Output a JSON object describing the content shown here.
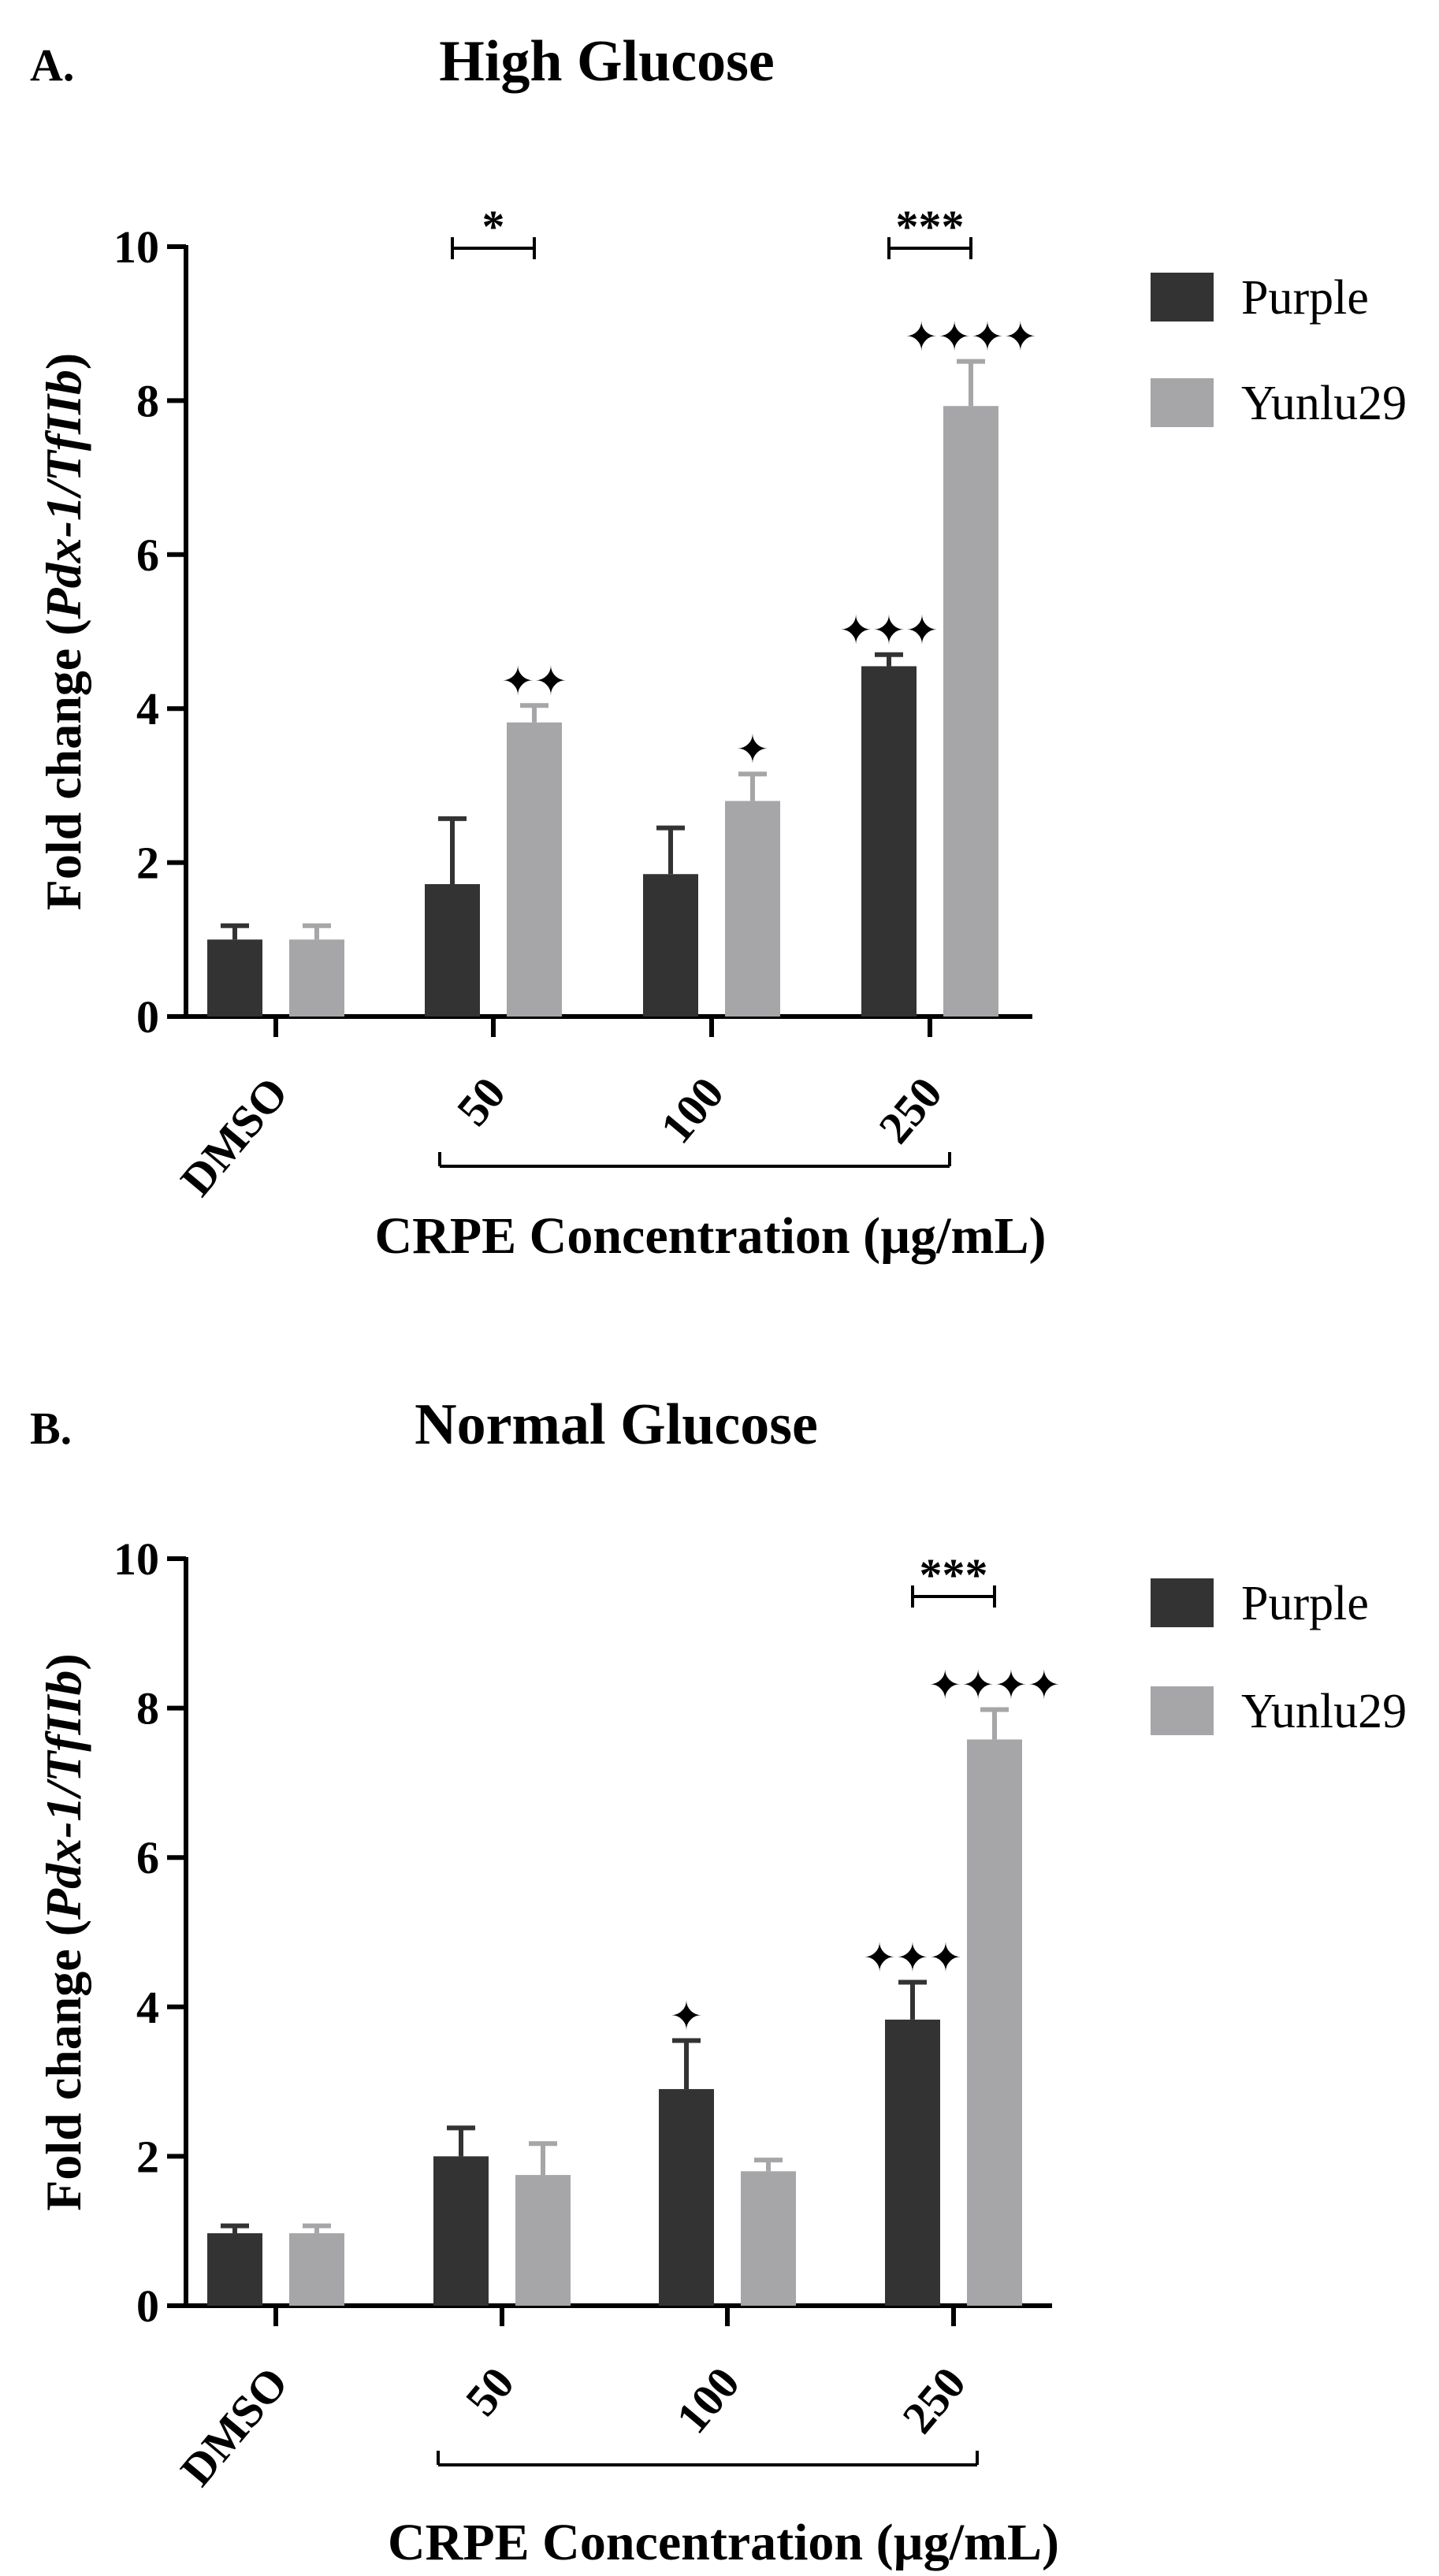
{
  "chart_data": [
    {
      "type": "bar",
      "panel_label": "A.",
      "title": "High Glucose",
      "xlabel": "CRPE Concentration (µg/mL)",
      "ylabel": "Fold change (Pdx-1/TfIIb)",
      "ylabel_parts": {
        "prefix": "Fold change (",
        "gene": "Pdx-1/TfIIb",
        "suffix": ")"
      },
      "ylim": [
        0,
        10
      ],
      "yticks": [
        0,
        2,
        4,
        6,
        8,
        10
      ],
      "categories": [
        "DMSO",
        "50",
        "100",
        "250"
      ],
      "legend_position": "top-right",
      "series": [
        {
          "name": "Purple",
          "color": "#333333",
          "values": [
            1.0,
            1.72,
            1.85,
            4.55
          ],
          "errors": [
            0.18,
            0.85,
            0.6,
            0.15
          ],
          "markers": [
            "",
            "",
            "",
            "✦✦✦"
          ]
        },
        {
          "name": "Yunlu29",
          "color": "#a6a6a8",
          "values": [
            1.0,
            3.82,
            2.8,
            7.93
          ],
          "errors": [
            0.18,
            0.22,
            0.35,
            0.58
          ],
          "markers": [
            "",
            "✦✦",
            "✦",
            "✦✦✦✦"
          ]
        }
      ],
      "comparisons": [
        {
          "category": "50",
          "label": "*"
        },
        {
          "category": "250",
          "label": "***"
        }
      ]
    },
    {
      "type": "bar",
      "panel_label": "B.",
      "title": "Normal Glucose",
      "xlabel": "CRPE Concentration (µg/mL)",
      "ylabel": "Fold change (Pdx-1/TfIIb)",
      "ylabel_parts": {
        "prefix": "Fold change (",
        "gene": "Pdx-1/TfIIb",
        "suffix": ")"
      },
      "ylim": [
        0,
        10
      ],
      "yticks": [
        0,
        2,
        4,
        6,
        8,
        10
      ],
      "categories": [
        "DMSO",
        "50",
        "100",
        "250"
      ],
      "legend_position": "top-right",
      "series": [
        {
          "name": "Purple",
          "color": "#333333",
          "values": [
            0.97,
            2.0,
            2.9,
            3.83
          ],
          "errors": [
            0.1,
            0.38,
            0.65,
            0.5
          ],
          "markers": [
            "",
            "",
            "✦",
            "✦✦✦"
          ]
        },
        {
          "name": "Yunlu29",
          "color": "#a6a6a8",
          "values": [
            0.97,
            1.75,
            1.8,
            7.58
          ],
          "errors": [
            0.1,
            0.42,
            0.15,
            0.4
          ],
          "markers": [
            "",
            "",
            "",
            "✦✦✦✦"
          ]
        }
      ],
      "comparisons": [
        {
          "category": "250",
          "label": "***"
        }
      ]
    }
  ]
}
